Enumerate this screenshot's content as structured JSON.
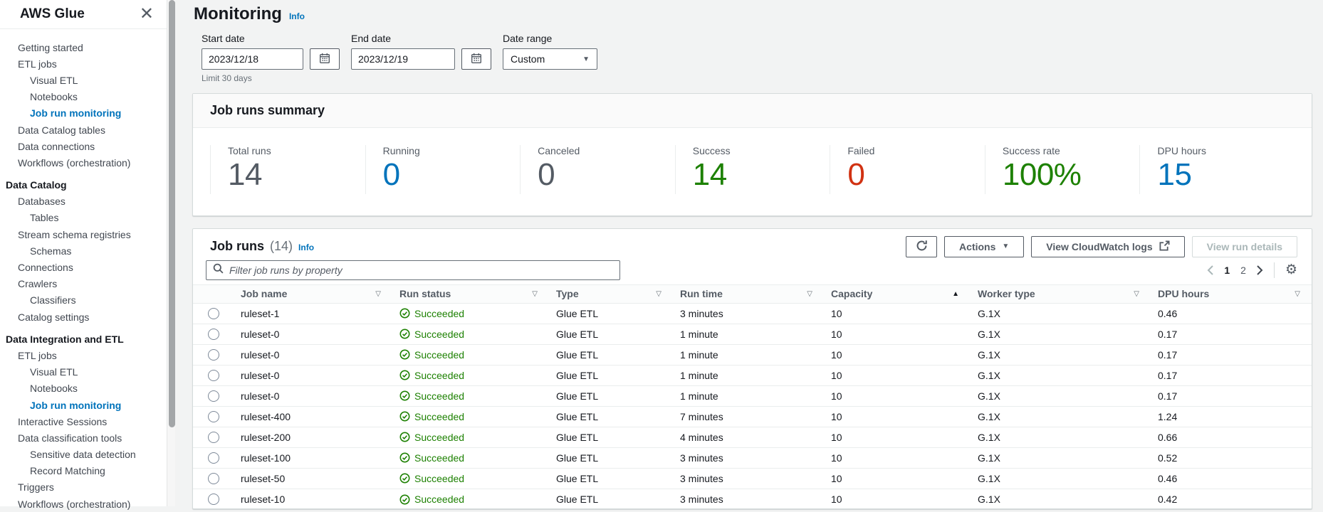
{
  "sidebar": {
    "title": "AWS Glue",
    "items": [
      {
        "label": "Getting started",
        "cls": "l0"
      },
      {
        "label": "ETL jobs",
        "cls": "l0"
      },
      {
        "label": "Visual ETL",
        "cls": "l1"
      },
      {
        "label": "Notebooks",
        "cls": "l1"
      },
      {
        "label": "Job run monitoring",
        "cls": "l1 active"
      },
      {
        "label": "Data Catalog tables",
        "cls": "l0"
      },
      {
        "label": "Data connections",
        "cls": "l0"
      },
      {
        "label": "Workflows (orchestration)",
        "cls": "l0"
      },
      {
        "label": "Data Catalog",
        "cls": "section"
      },
      {
        "label": "Databases",
        "cls": "l0"
      },
      {
        "label": "Tables",
        "cls": "l1"
      },
      {
        "label": "Stream schema registries",
        "cls": "l0"
      },
      {
        "label": "Schemas",
        "cls": "l1"
      },
      {
        "label": "Connections",
        "cls": "l0"
      },
      {
        "label": "Crawlers",
        "cls": "l0"
      },
      {
        "label": "Classifiers",
        "cls": "l1"
      },
      {
        "label": "Catalog settings",
        "cls": "l0"
      },
      {
        "label": "Data Integration and ETL",
        "cls": "section"
      },
      {
        "label": "ETL jobs",
        "cls": "l0"
      },
      {
        "label": "Visual ETL",
        "cls": "l1"
      },
      {
        "label": "Notebooks",
        "cls": "l1"
      },
      {
        "label": "Job run monitoring",
        "cls": "l1 active"
      },
      {
        "label": "Interactive Sessions",
        "cls": "l0"
      },
      {
        "label": "Data classification tools",
        "cls": "l0"
      },
      {
        "label": "Sensitive data detection",
        "cls": "l1"
      },
      {
        "label": "Record Matching",
        "cls": "l1"
      },
      {
        "label": "Triggers",
        "cls": "l0"
      },
      {
        "label": "Workflows (orchestration)",
        "cls": "l0"
      }
    ]
  },
  "page": {
    "title": "Monitoring",
    "info_label": "Info"
  },
  "filters": {
    "start_date": {
      "label": "Start date",
      "value": "2023/12/18"
    },
    "end_date": {
      "label": "End date",
      "value": "2023/12/19"
    },
    "date_range": {
      "label": "Date range",
      "value": "Custom"
    },
    "limit_note": "Limit 30 days"
  },
  "summary": {
    "title": "Job runs summary",
    "metrics": [
      {
        "label": "Total runs",
        "value": "14",
        "color": "#545b64"
      },
      {
        "label": "Running",
        "value": "0",
        "color": "#0073bb"
      },
      {
        "label": "Canceled",
        "value": "0",
        "color": "#545b64"
      },
      {
        "label": "Success",
        "value": "14",
        "color": "#1d8102"
      },
      {
        "label": "Failed",
        "value": "0",
        "color": "#d13212"
      },
      {
        "label": "Success rate",
        "value": "100%",
        "color": "#1d8102"
      },
      {
        "label": "DPU hours",
        "value": "15",
        "color": "#0073bb"
      }
    ]
  },
  "job_runs": {
    "title": "Job runs",
    "count": "(14)",
    "info_label": "Info",
    "toolbar": {
      "actions_label": "Actions",
      "cloudwatch_label": "View CloudWatch logs",
      "view_details_label": "View run details"
    },
    "filter_placeholder": "Filter job runs by property",
    "pagination": {
      "pages": [
        {
          "label": "1",
          "cls": "current"
        },
        {
          "label": "2",
          "cls": ""
        }
      ]
    },
    "columns": [
      {
        "label": "Job name",
        "sort": "▽",
        "cls": "outline"
      },
      {
        "label": "Run status",
        "sort": "▽",
        "cls": "outline"
      },
      {
        "label": "Type",
        "sort": "▽",
        "cls": "outline"
      },
      {
        "label": "Run time",
        "sort": "▽",
        "cls": "outline"
      },
      {
        "label": "Capacity",
        "sort": "▲",
        "cls": "filled"
      },
      {
        "label": "Worker type",
        "sort": "▽",
        "cls": "outline"
      },
      {
        "label": "DPU hours",
        "sort": "▽",
        "cls": "outline"
      }
    ],
    "rows": [
      {
        "name": "ruleset-1",
        "status": "Succeeded",
        "type": "Glue ETL",
        "run_time": "3 minutes",
        "capacity": "10",
        "worker_type": "G.1X",
        "dpu_hours": "0.46"
      },
      {
        "name": "ruleset-0",
        "status": "Succeeded",
        "type": "Glue ETL",
        "run_time": "1 minute",
        "capacity": "10",
        "worker_type": "G.1X",
        "dpu_hours": "0.17"
      },
      {
        "name": "ruleset-0",
        "status": "Succeeded",
        "type": "Glue ETL",
        "run_time": "1 minute",
        "capacity": "10",
        "worker_type": "G.1X",
        "dpu_hours": "0.17"
      },
      {
        "name": "ruleset-0",
        "status": "Succeeded",
        "type": "Glue ETL",
        "run_time": "1 minute",
        "capacity": "10",
        "worker_type": "G.1X",
        "dpu_hours": "0.17"
      },
      {
        "name": "ruleset-0",
        "status": "Succeeded",
        "type": "Glue ETL",
        "run_time": "1 minute",
        "capacity": "10",
        "worker_type": "G.1X",
        "dpu_hours": "0.17"
      },
      {
        "name": "ruleset-400",
        "status": "Succeeded",
        "type": "Glue ETL",
        "run_time": "7 minutes",
        "capacity": "10",
        "worker_type": "G.1X",
        "dpu_hours": "1.24"
      },
      {
        "name": "ruleset-200",
        "status": "Succeeded",
        "type": "Glue ETL",
        "run_time": "4 minutes",
        "capacity": "10",
        "worker_type": "G.1X",
        "dpu_hours": "0.66"
      },
      {
        "name": "ruleset-100",
        "status": "Succeeded",
        "type": "Glue ETL",
        "run_time": "3 minutes",
        "capacity": "10",
        "worker_type": "G.1X",
        "dpu_hours": "0.52"
      },
      {
        "name": "ruleset-50",
        "status": "Succeeded",
        "type": "Glue ETL",
        "run_time": "3 minutes",
        "capacity": "10",
        "worker_type": "G.1X",
        "dpu_hours": "0.46"
      },
      {
        "name": "ruleset-10",
        "status": "Succeeded",
        "type": "Glue ETL",
        "run_time": "3 minutes",
        "capacity": "10",
        "worker_type": "G.1X",
        "dpu_hours": "0.42"
      }
    ]
  }
}
